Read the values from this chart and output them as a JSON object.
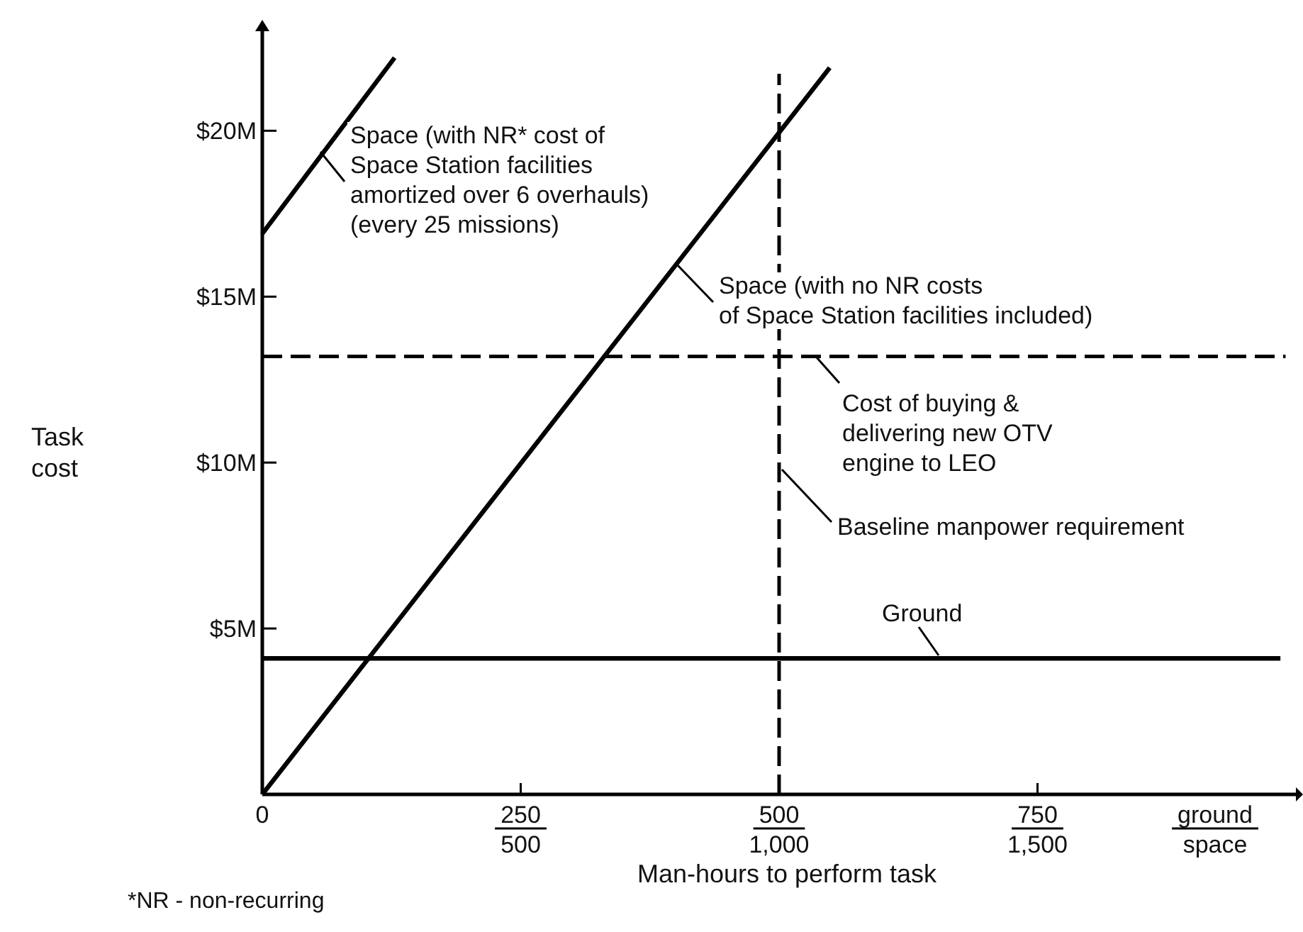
{
  "chart_data": {
    "type": "line",
    "xlabel": "Man-hours to perform task",
    "ylabel": "Task\ncost",
    "xlim": [
      0,
      1000
    ],
    "ylim": [
      0,
      23
    ],
    "xticks": [
      0,
      250,
      500,
      750
    ],
    "x2lim": [
      0,
      2000
    ],
    "x2ticks": [
      {
        "value": 500,
        "label": "500"
      },
      {
        "value": 1000,
        "label": "1,000"
      },
      {
        "value": 1500,
        "label": "1,500"
      }
    ],
    "yticks": [
      {
        "value": 5,
        "label": "$5M"
      },
      {
        "value": 10,
        "label": "$10M"
      },
      {
        "value": 15,
        "label": "$15M"
      },
      {
        "value": 20,
        "label": "$20M"
      }
    ],
    "grid": false,
    "legend": "top",
    "ref_lines": [
      {
        "axis": "x",
        "value": 500,
        "label": "Baseline manpower requirement",
        "color": "#000000",
        "line_style": "dashed"
      }
    ],
    "series": [
      {
        "name": "Space (with NR* cost of\nSpace Station facilities\namortized over 6 overhauls)\n(every 25 missions)",
        "color": "#000000",
        "line_style": "solid",
        "x": [
          0,
          128
        ],
        "values": [
          16.9,
          22.2
        ]
      },
      {
        "name": "Space (with no NR costs\nof Space Station facilities included)",
        "color": "#000000",
        "line_style": "solid",
        "x": [
          0,
          549
        ],
        "values": [
          0,
          21.9
        ]
      },
      {
        "name": "Cost of buying &\ndelivering new OTV\nengine to LEO",
        "color": "#000000",
        "line_style": "dashed",
        "x": [
          0,
          990
        ],
        "values": [
          13.2,
          13.2
        ]
      },
      {
        "name": "Ground",
        "color": "#000000",
        "line_style": "solid",
        "x": [
          0,
          985
        ],
        "values": [
          4.1,
          4.1
        ]
      }
    ],
    "annotations": [
      "ground",
      "space",
      "*NR - non-recurring"
    ]
  }
}
